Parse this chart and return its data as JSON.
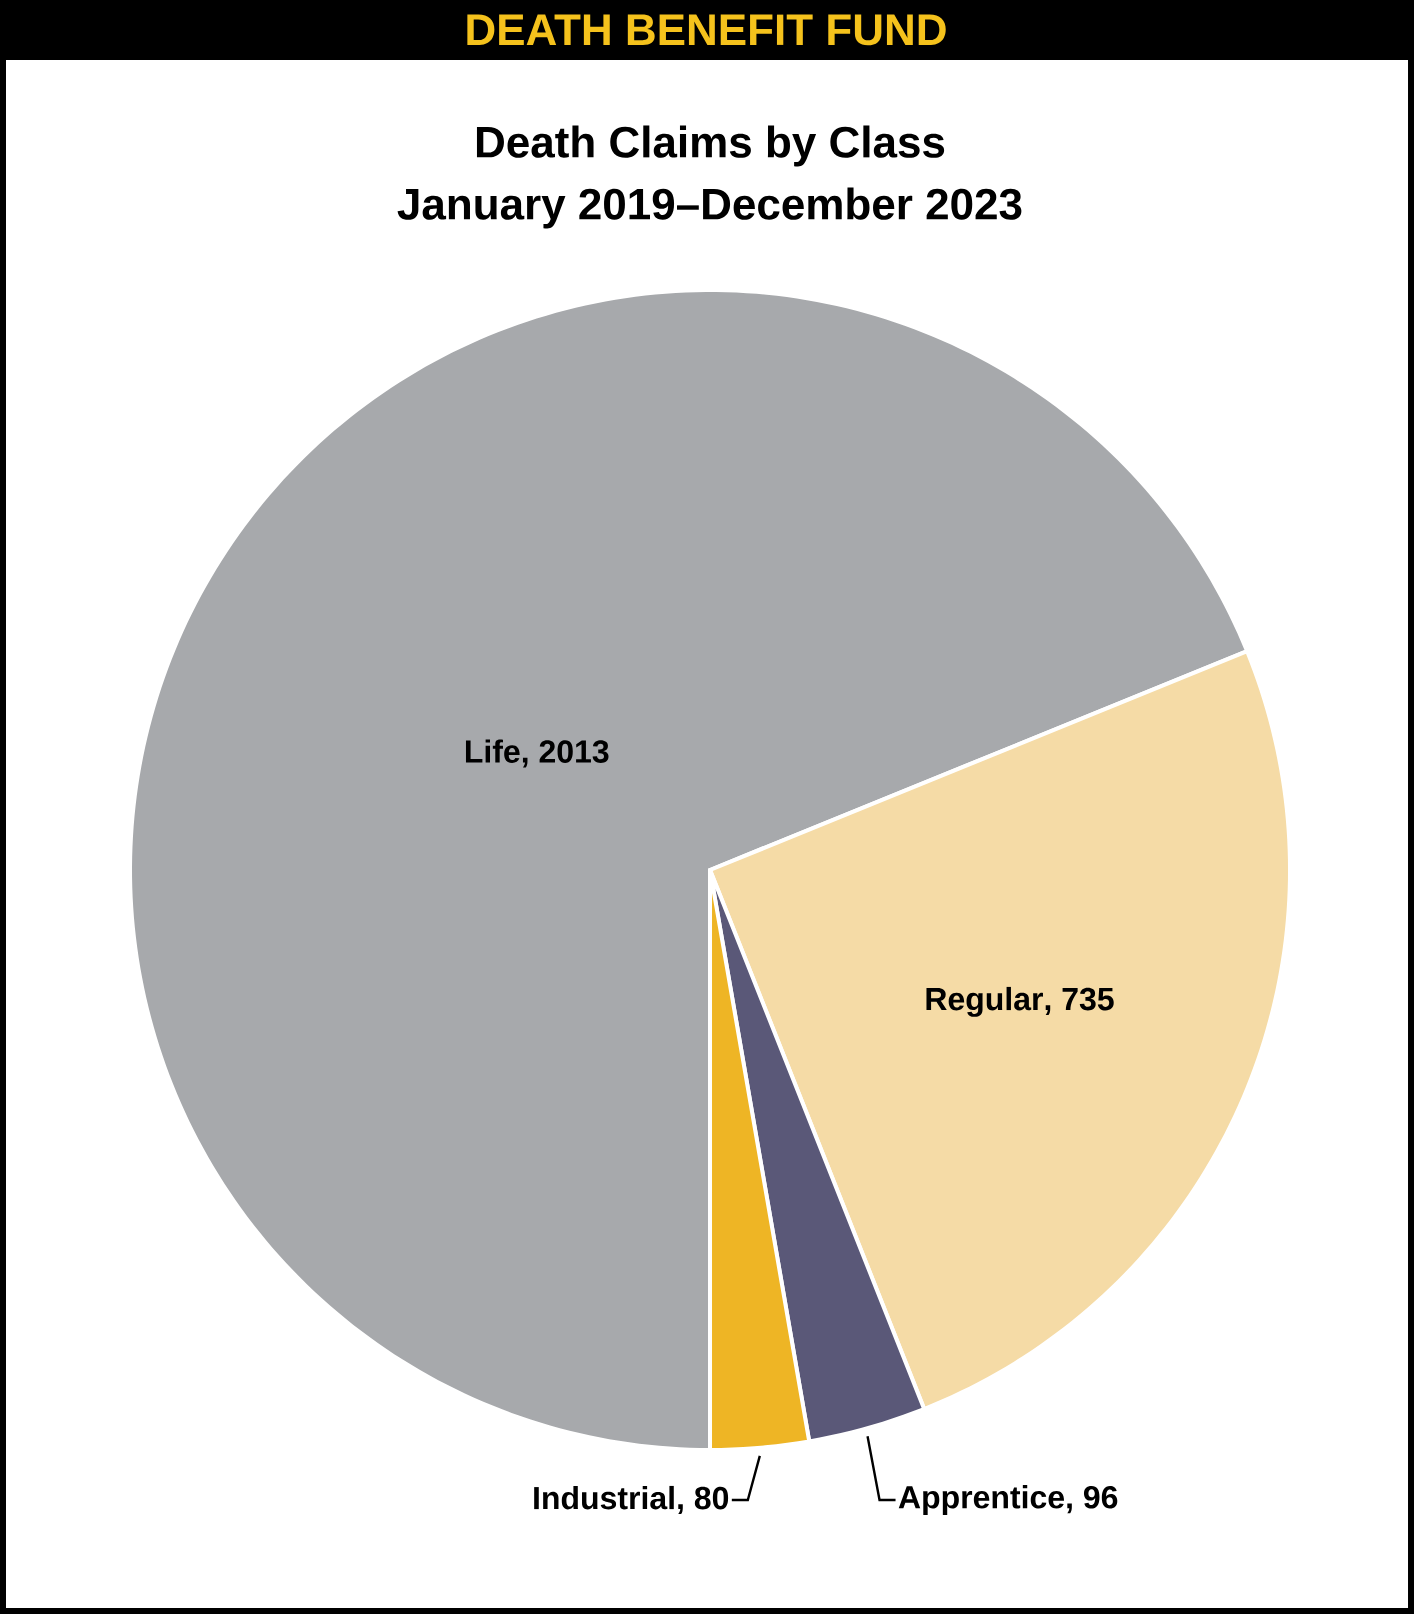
{
  "chart_data": {
    "type": "pie",
    "title": "DEATH BENEFIT FUND",
    "subtitle": "Death Claims by Class",
    "annotations": [
      "January 2019–December 2023"
    ],
    "categories": [
      "Life",
      "Regular",
      "Apprentice",
      "Industrial"
    ],
    "values": [
      2013,
      735,
      96,
      80
    ],
    "colors": [
      "#a7a9ac",
      "#f5dba6",
      "#5a5878",
      "#eeb525"
    ],
    "value_labels": [
      ", 2013",
      ", 735",
      ", 96",
      ", 80"
    ]
  }
}
